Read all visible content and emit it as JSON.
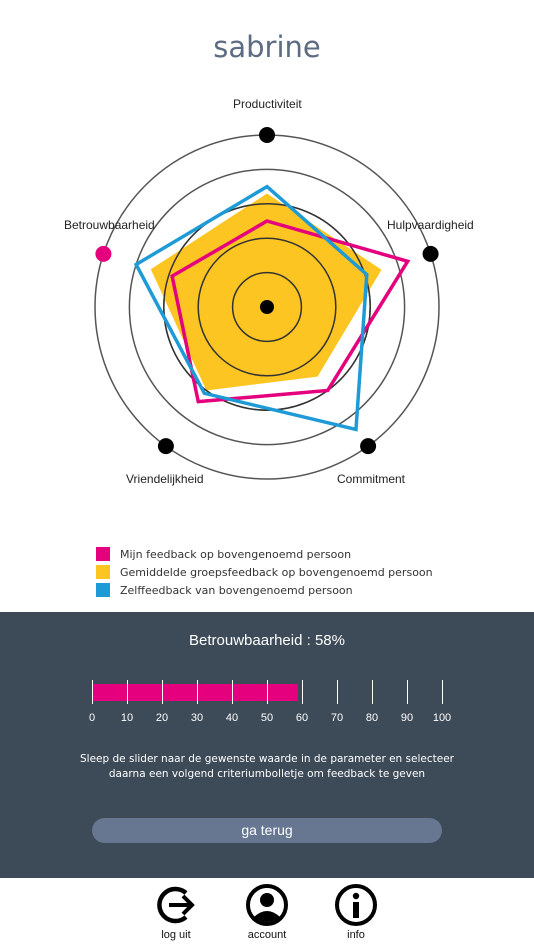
{
  "header": {
    "title": "sabrine"
  },
  "chart_data": {
    "type": "radar",
    "axes": [
      "Productiviteit",
      "Hulpvaardigheid",
      "Commitment",
      "Vriendelijkheid",
      "Betrouwbaarheid"
    ],
    "range": [
      0,
      100
    ],
    "series": [
      {
        "name": "Mijn feedback op bovengenoemd persoon",
        "color": "#e5007d",
        "values": [
          50,
          86,
          60,
          68,
          58
        ]
      },
      {
        "name": "Gemiddelde groepsfeedback op bovengenoemd persoon",
        "color": "#fcc521",
        "values": [
          66,
          70,
          50,
          60,
          71
        ]
      },
      {
        "name": "Zelffeedback van bovengenoemd persoon",
        "color": "#1e9bd7",
        "values": [
          70,
          61,
          88,
          62,
          80
        ]
      }
    ],
    "selected_axis": "Betrouwbaarheid",
    "selected_color": "#e5007d"
  },
  "legend": [
    {
      "label": "Mijn feedback op bovengenoemd persoon",
      "color": "#e5007d"
    },
    {
      "label": "Gemiddelde groepsfeedback op bovengenoemd persoon",
      "color": "#fcc521"
    },
    {
      "label": "Zelffeedback van bovengenoemd persoon",
      "color": "#1e9bd7"
    }
  ],
  "panel": {
    "parameter_title": "Betrouwbaarheid : 58%",
    "slider_value": 58,
    "slider_labels": [
      "0",
      "10",
      "20",
      "30",
      "40",
      "50",
      "60",
      "70",
      "80",
      "90",
      "100"
    ],
    "instruction_line1": "Sleep de slider naar de gewenste waarde in de parameter en selecteer",
    "instruction_line2": "daarna een volgend criteriumbolletje om feedback te geven",
    "back_label": "ga terug"
  },
  "nav": {
    "logout_label": "log uit",
    "account_label": "account",
    "info_label": "info"
  }
}
